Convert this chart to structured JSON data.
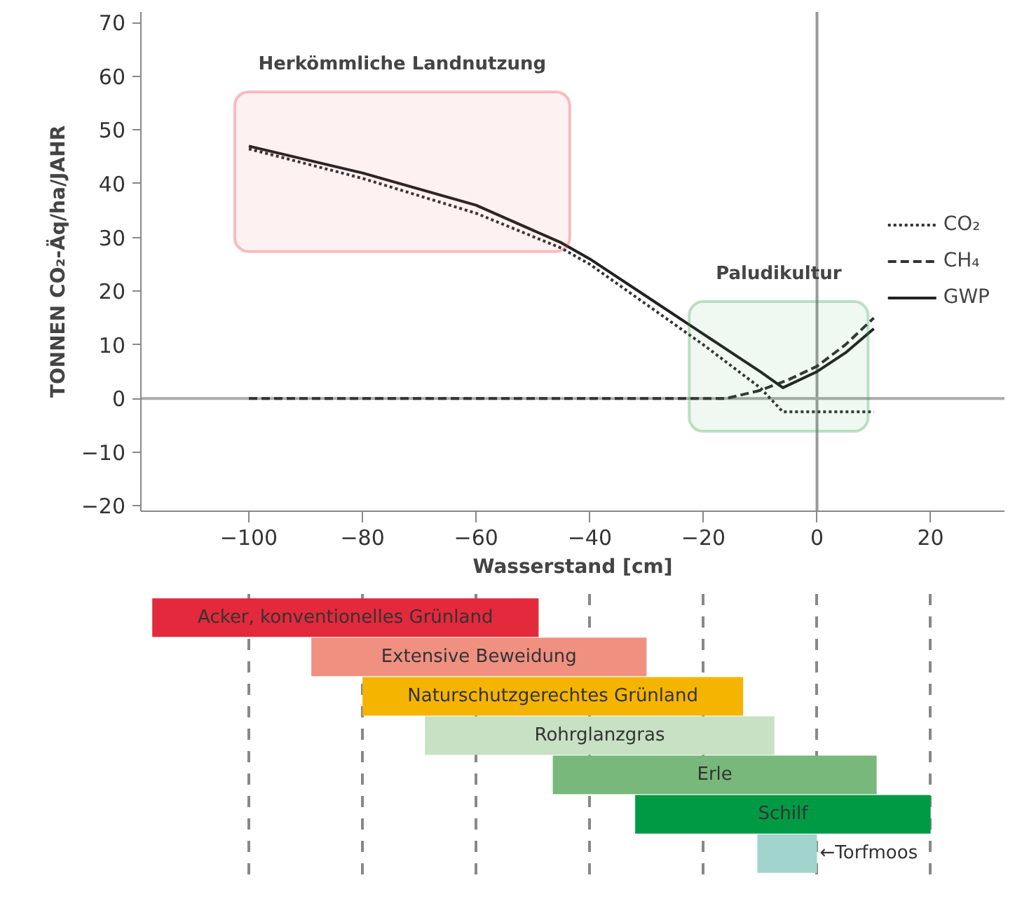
{
  "chart_data": [
    {
      "type": "line",
      "xlabel": "Wasserstand [cm]",
      "ylabel": "TONNEN CO₂-Äq/ha/JAHR",
      "xlim": [
        -119,
        33
      ],
      "ylim": [
        -21,
        72
      ],
      "xticks": [
        -100,
        -80,
        -60,
        -40,
        -20,
        0,
        20
      ],
      "yticks": [
        -20,
        -10,
        0,
        10,
        20,
        30,
        40,
        50,
        60,
        70
      ],
      "series": [
        {
          "name": "CO₂",
          "color": "#333333",
          "line_style": "dotted",
          "x": [
            -100,
            -80,
            -60,
            -45,
            -40,
            -30,
            -20,
            -10,
            -6,
            0,
            5,
            10
          ],
          "values": [
            46.5,
            41,
            34.5,
            28,
            25,
            17.5,
            10,
            2,
            -2.5,
            -2.5,
            -2.5,
            -2.5
          ]
        },
        {
          "name": "CH₄",
          "color": "#333333",
          "line_style": "dashed",
          "x": [
            -100,
            -80,
            -60,
            -40,
            -16,
            -10,
            -5,
            0,
            5,
            10
          ],
          "values": [
            0,
            0,
            0,
            0,
            0,
            1.5,
            3.5,
            6,
            10,
            15
          ]
        },
        {
          "name": "GWP",
          "color": "#222222",
          "line_style": "solid",
          "x": [
            -100,
            -80,
            -60,
            -45,
            -40,
            -30,
            -20,
            -10,
            -6,
            0,
            5,
            10
          ],
          "values": [
            47,
            42,
            36,
            29,
            26,
            19,
            12,
            5,
            2,
            5,
            8.5,
            13
          ]
        }
      ],
      "ref_lines": [
        {
          "axis": "x",
          "value": 0,
          "color": "#9a9a9a"
        },
        {
          "axis": "y",
          "value": 0,
          "color": "#aaaaaa"
        }
      ],
      "bands": [
        {
          "axis": "x",
          "from": -102.5,
          "to": -43.5,
          "label": "Herkömmliche Landnutzung",
          "color": "#e8323f"
        },
        {
          "axis": "x",
          "from": -22.5,
          "to": 9,
          "label": "Paludikultur",
          "color": "#2ea043"
        }
      ],
      "legend": "right",
      "grid": false
    },
    {
      "type": "bar",
      "orientation": "horizontal",
      "categories": [
        "Acker, konventionelles Grünland",
        "Extensive Beweidung",
        "Naturschutzgerechtes Grünland",
        "Rohrglanzgras",
        "Erle",
        "Schilf",
        "←Torfmoos"
      ],
      "base": [
        -117,
        -89,
        -80,
        -69,
        -46.5,
        -32,
        -10.5
      ],
      "values": [
        68,
        59,
        67,
        61.5,
        57,
        52,
        10.5
      ],
      "colors": [
        "#e3293b",
        "#f09080",
        "#f5b400",
        "#c8e0c4",
        "#78b87a",
        "#009a44",
        "#a0d4cc"
      ],
      "xticks": [
        -100,
        -80,
        -60,
        -40,
        -20,
        0,
        20
      ],
      "tick_labels": false,
      "grid": "x"
    }
  ]
}
